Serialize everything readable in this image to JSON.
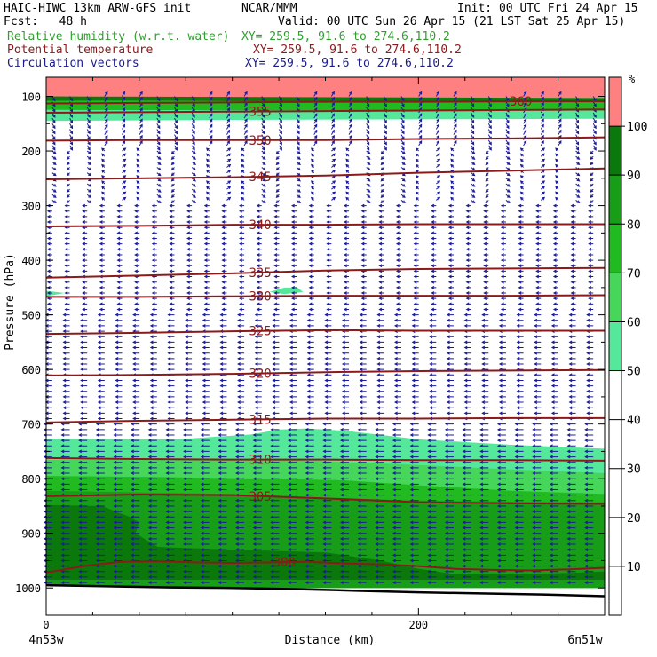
{
  "header": {
    "title": "HAIC-HIWC 13km ARW-GFS init",
    "org": "NCAR/MMM",
    "init": "Init: 00 UTC Fri 24 Apr 15",
    "fcst": "Fcst:   48 h",
    "valid": "Valid: 00 UTC Sun 26 Apr 15 (21 LST Sat 25 Apr 15)",
    "field1": "Relative humidity (w.r.t. water)",
    "field1_xy": "XY= 259.5, 91.6 to 274.6,110.2",
    "field2": "Potential temperature",
    "field2_xy": "XY= 259.5, 91.6 to 274.6,110.2",
    "field3": "Circulation vectors",
    "field3_xy": "XY= 259.5, 91.6 to 274.6,110.2",
    "field1_color": "#2f9e2f",
    "field2_color": "#8b1a1a",
    "field3_color": "#1a1a8b"
  },
  "chart_data": {
    "type": "contour-cross-section",
    "xlabel": "Distance (km)",
    "ylabel": "Pressure (hPa)",
    "xlim": [
      0,
      300
    ],
    "ylim": [
      1050,
      65
    ],
    "x_ticks": [
      0,
      200
    ],
    "y_ticks": [
      100,
      200,
      300,
      400,
      500,
      600,
      700,
      800,
      900,
      1000
    ],
    "left_endpoint_label": "4n53w",
    "right_endpoint_label": "6n51w",
    "colorbar": {
      "unit": "%",
      "levels": [
        10,
        20,
        30,
        40,
        50,
        60,
        70,
        80,
        90,
        100
      ],
      "bands": [
        {
          "from": 40,
          "to": 50,
          "color": "#ffffff"
        },
        {
          "from": 50,
          "to": 60,
          "color": "#55e89a"
        },
        {
          "from": 60,
          "to": 70,
          "color": "#46d65a"
        },
        {
          "from": 70,
          "to": 80,
          "color": "#21bb21"
        },
        {
          "from": 80,
          "to": 90,
          "color": "#179d17"
        },
        {
          "from": 90,
          "to": 100,
          "color": "#0a780a"
        },
        {
          "from": 100,
          "to": 110,
          "color": "#ff8080"
        }
      ]
    },
    "theta_contours": [
      {
        "label": "300",
        "x": [
          0,
          20,
          40,
          60,
          80,
          100,
          120,
          140,
          160,
          180,
          200,
          220,
          240,
          260,
          280,
          300
        ],
        "p": [
          972,
          960,
          952,
          951,
          953,
          954,
          953,
          952,
          955,
          957,
          960,
          965,
          967,
          968,
          966,
          963
        ]
      },
      {
        "label": "305",
        "x": [
          0,
          50,
          100,
          150,
          200,
          250,
          300
        ],
        "p": [
          832,
          829,
          830,
          836,
          843,
          845,
          846
        ]
      },
      {
        "label": "310",
        "x": [
          0,
          50,
          100,
          150,
          200,
          250,
          300
        ],
        "p": [
          762,
          764,
          765,
          765,
          766,
          766,
          767
        ]
      },
      {
        "label": "315",
        "x": [
          0,
          50,
          100,
          150,
          200,
          250,
          300
        ],
        "p": [
          697,
          694,
          692,
          690,
          690,
          689,
          689
        ]
      },
      {
        "label": "320",
        "x": [
          0,
          50,
          100,
          150,
          200,
          250,
          300
        ],
        "p": [
          611,
          610,
          608,
          605,
          603,
          602,
          601
        ]
      },
      {
        "label": "325",
        "x": [
          0,
          50,
          100,
          150,
          200,
          250,
          300
        ],
        "p": [
          535,
          533,
          530,
          528,
          529,
          529,
          529
        ]
      },
      {
        "label": "330",
        "x": [
          0,
          50,
          100,
          150,
          200,
          250,
          300
        ],
        "p": [
          467,
          467,
          466,
          465,
          465,
          465,
          464
        ]
      },
      {
        "label": "335",
        "x": [
          0,
          50,
          100,
          150,
          200,
          250,
          300
        ],
        "p": [
          432,
          428,
          424,
          419,
          416,
          415,
          414
        ]
      },
      {
        "label": "340",
        "x": [
          0,
          50,
          100,
          150,
          200,
          250,
          300
        ],
        "p": [
          338,
          337,
          335,
          335,
          334,
          334,
          334
        ]
      },
      {
        "label": "345",
        "x": [
          0,
          50,
          100,
          150,
          200,
          250,
          300
        ],
        "p": [
          252,
          250,
          248,
          245,
          240,
          236,
          232
        ]
      },
      {
        "label": "350",
        "x": [
          0,
          50,
          100,
          150,
          200,
          250,
          300
        ],
        "p": [
          181,
          180,
          180,
          180,
          178,
          177,
          175
        ]
      },
      {
        "label": "355",
        "x": [
          0,
          50,
          100,
          150,
          200,
          250,
          300
        ],
        "p": [
          130,
          129,
          128,
          127,
          126,
          125,
          124
        ]
      },
      {
        "label": "360",
        "x": [
          0,
          50,
          100,
          150,
          200,
          250,
          300
        ],
        "p": [
          113,
          112,
          111,
          110,
          110,
          109,
          109
        ]
      }
    ],
    "rh_regions": [
      {
        "rh": 100,
        "top": [
          [
            0,
            65
          ],
          [
            300,
            65
          ]
        ],
        "bottom": [
          [
            0,
            100
          ],
          [
            60,
            101
          ],
          [
            120,
            102
          ],
          [
            200,
            103
          ],
          [
            300,
            103
          ]
        ]
      },
      {
        "rh": 90,
        "top": [
          [
            0,
            100
          ],
          [
            300,
            103
          ]
        ],
        "bottom": [
          [
            0,
            108
          ],
          [
            100,
            109
          ],
          [
            200,
            110
          ],
          [
            300,
            110
          ]
        ]
      },
      {
        "rh": 70,
        "top": [
          [
            0,
            108
          ],
          [
            300,
            110
          ]
        ],
        "bottom": [
          [
            0,
            125
          ],
          [
            100,
            126
          ],
          [
            200,
            126
          ],
          [
            300,
            126
          ]
        ]
      },
      {
        "rh": 50,
        "top": [
          [
            0,
            125
          ],
          [
            300,
            126
          ]
        ],
        "bottom": [
          [
            0,
            145
          ],
          [
            100,
            143
          ],
          [
            200,
            142
          ],
          [
            300,
            141
          ]
        ]
      },
      {
        "rh": 50,
        "top": [
          [
            0,
            727
          ],
          [
            70,
            728
          ],
          [
            110,
            719
          ],
          [
            125,
            710
          ],
          [
            140,
            708
          ],
          [
            160,
            712
          ],
          [
            200,
            728
          ],
          [
            250,
            738
          ],
          [
            300,
            745
          ]
        ],
        "bottom": [
          [
            0,
            1000
          ],
          [
            300,
            1000
          ]
        ]
      },
      {
        "rh": 60,
        "top": [
          [
            0,
            765
          ],
          [
            60,
            766
          ],
          [
            120,
            765
          ],
          [
            150,
            768
          ],
          [
            200,
            775
          ],
          [
            250,
            783
          ],
          [
            300,
            790
          ]
        ],
        "bottom": [
          [
            0,
            1000
          ],
          [
            300,
            1000
          ]
        ]
      },
      {
        "rh": 70,
        "top": [
          [
            0,
            795
          ],
          [
            60,
            797
          ],
          [
            120,
            800
          ],
          [
            160,
            803
          ],
          [
            200,
            812
          ],
          [
            250,
            822
          ],
          [
            300,
            828
          ]
        ],
        "bottom": [
          [
            0,
            1000
          ],
          [
            300,
            1000
          ]
        ]
      },
      {
        "rh": 80,
        "top": [
          [
            0,
            822
          ],
          [
            50,
            825
          ],
          [
            100,
            828
          ],
          [
            150,
            835
          ],
          [
            200,
            840
          ],
          [
            250,
            842
          ],
          [
            300,
            843
          ]
        ],
        "bottom": [
          [
            0,
            1000
          ],
          [
            300,
            1000
          ]
        ]
      },
      {
        "rh": 90,
        "top": [
          [
            0,
            848
          ],
          [
            30,
            850
          ],
          [
            45,
            870
          ],
          [
            50,
            880
          ],
          [
            48,
            900
          ],
          [
            60,
            925
          ],
          [
            100,
            930
          ],
          [
            150,
            935
          ],
          [
            180,
            950
          ],
          [
            200,
            965
          ],
          [
            220,
            975
          ],
          [
            260,
            975
          ],
          [
            300,
            970
          ]
        ],
        "bottom": [
          [
            0,
            985
          ],
          [
            300,
            985
          ]
        ]
      },
      {
        "rh": 50,
        "blob": [
          [
            0,
            456
          ],
          [
            10,
            460
          ],
          [
            0,
            466
          ]
        ]
      },
      {
        "rh": 50,
        "blob": [
          [
            120,
            458
          ],
          [
            128,
            450
          ],
          [
            135,
            450
          ],
          [
            138,
            458
          ],
          [
            128,
            462
          ]
        ]
      }
    ],
    "terrain_p": [
      995,
      997,
      999,
      1000,
      1002,
      1005,
      1008,
      1010,
      1012,
      1015
    ]
  }
}
